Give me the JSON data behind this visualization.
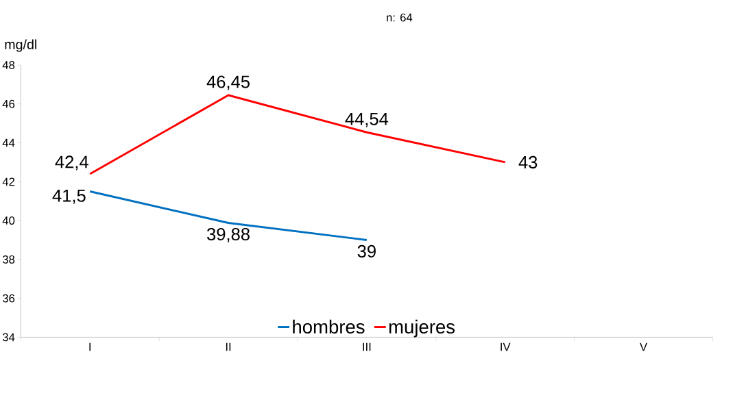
{
  "chart_data": {
    "type": "line",
    "title": "n: 64",
    "ylabel": "mg/dl",
    "categories": [
      "I",
      "II",
      "III",
      "IV",
      "V"
    ],
    "series": [
      {
        "name": "hombres",
        "color": "#0070c0",
        "values": [
          41.5,
          39.88,
          39,
          null,
          null
        ],
        "value_labels": [
          "41,5",
          "39,88",
          "39",
          null,
          null
        ]
      },
      {
        "name": "mujeres",
        "color": "#ff0000",
        "values": [
          42.4,
          46.45,
          44.54,
          43,
          null
        ],
        "value_labels": [
          "42,4",
          "46,45",
          "44,54",
          "43",
          null
        ]
      }
    ],
    "ylim": [
      34,
      48
    ],
    "yticks": [
      34,
      36,
      38,
      40,
      42,
      44,
      46,
      48
    ],
    "grid": false,
    "legend": "bottom",
    "marker": "none",
    "line_style": "solid"
  }
}
